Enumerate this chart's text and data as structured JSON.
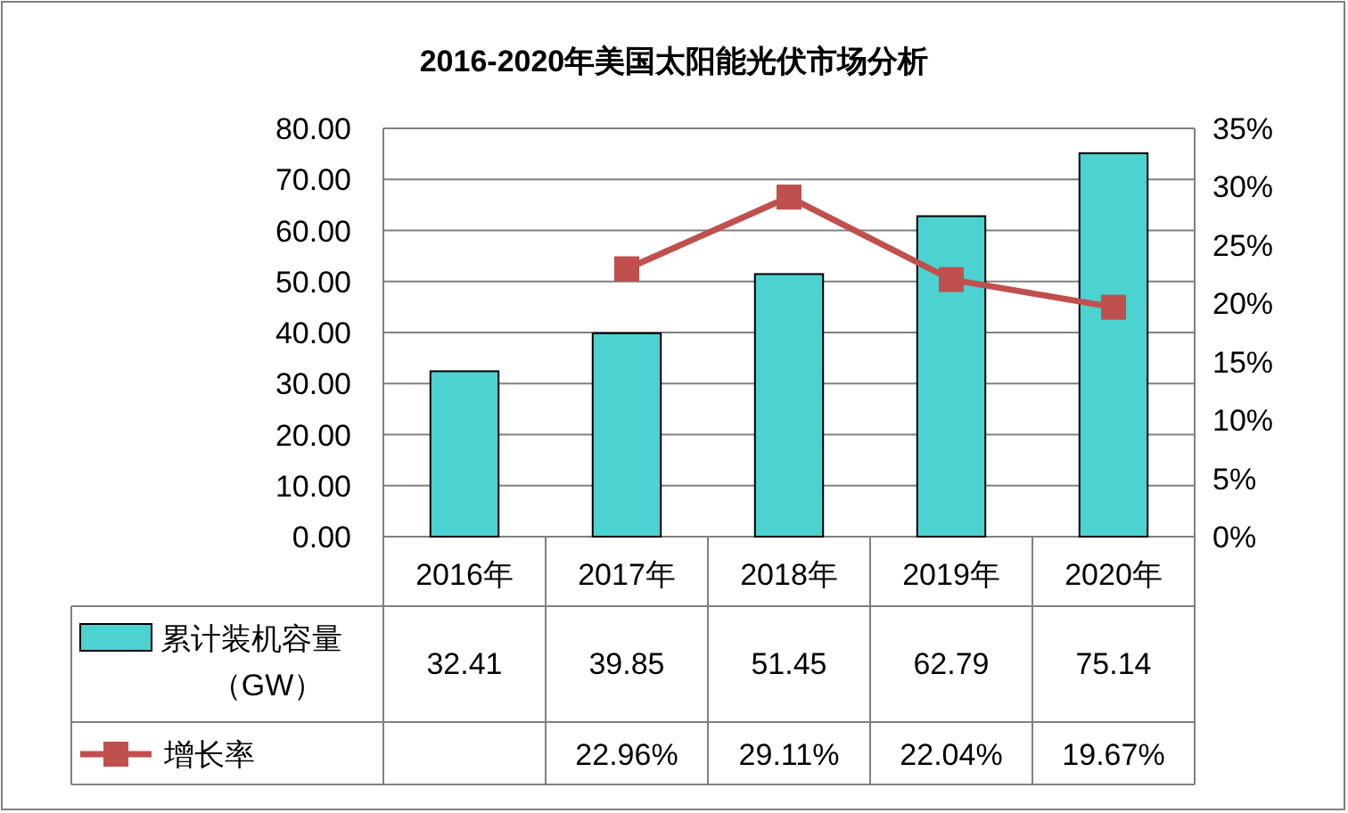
{
  "chart_data": {
    "type": "bar",
    "title": "2016-2020年美国太阳能光伏市场分析",
    "categories": [
      "2016年",
      "2017年",
      "2018年",
      "2019年",
      "2020年"
    ],
    "series": [
      {
        "name": "累计装机容量（GW）",
        "color": "#4dd2d2",
        "values": [
          32.41,
          39.85,
          51.45,
          62.79,
          75.14
        ],
        "value_labels": [
          "32.41",
          "39.85",
          "51.45",
          "62.79",
          "75.14"
        ]
      },
      {
        "name": "增长率",
        "type": "line",
        "axis": "y2",
        "color": "#c0504d",
        "marker": "square",
        "values": [
          null,
          22.96,
          29.11,
          22.04,
          19.67
        ],
        "value_labels": [
          null,
          "22.96%",
          "29.11%",
          "22.04%",
          "19.67%"
        ]
      }
    ],
    "ylim": [
      0,
      80
    ],
    "yticks": [
      {
        "value": 0,
        "label": "0.00"
      },
      {
        "value": 10,
        "label": "10.00"
      },
      {
        "value": 20,
        "label": "20.00"
      },
      {
        "value": 30,
        "label": "30.00"
      },
      {
        "value": 40,
        "label": "40.00"
      },
      {
        "value": 50,
        "label": "50.00"
      },
      {
        "value": 60,
        "label": "60.00"
      },
      {
        "value": 70,
        "label": "70.00"
      },
      {
        "value": 80,
        "label": "80.00"
      }
    ],
    "y2lim": [
      0,
      35
    ],
    "y2ticks": [
      {
        "value": 0,
        "label": "0%"
      },
      {
        "value": 5,
        "label": "5%"
      },
      {
        "value": 10,
        "label": "10%"
      },
      {
        "value": 15,
        "label": "15%"
      },
      {
        "value": 20,
        "label": "20%"
      },
      {
        "value": 25,
        "label": "25%"
      },
      {
        "value": 30,
        "label": "30%"
      },
      {
        "value": 35,
        "label": "35%"
      }
    ],
    "grid": "y",
    "legend": "bottom left"
  }
}
